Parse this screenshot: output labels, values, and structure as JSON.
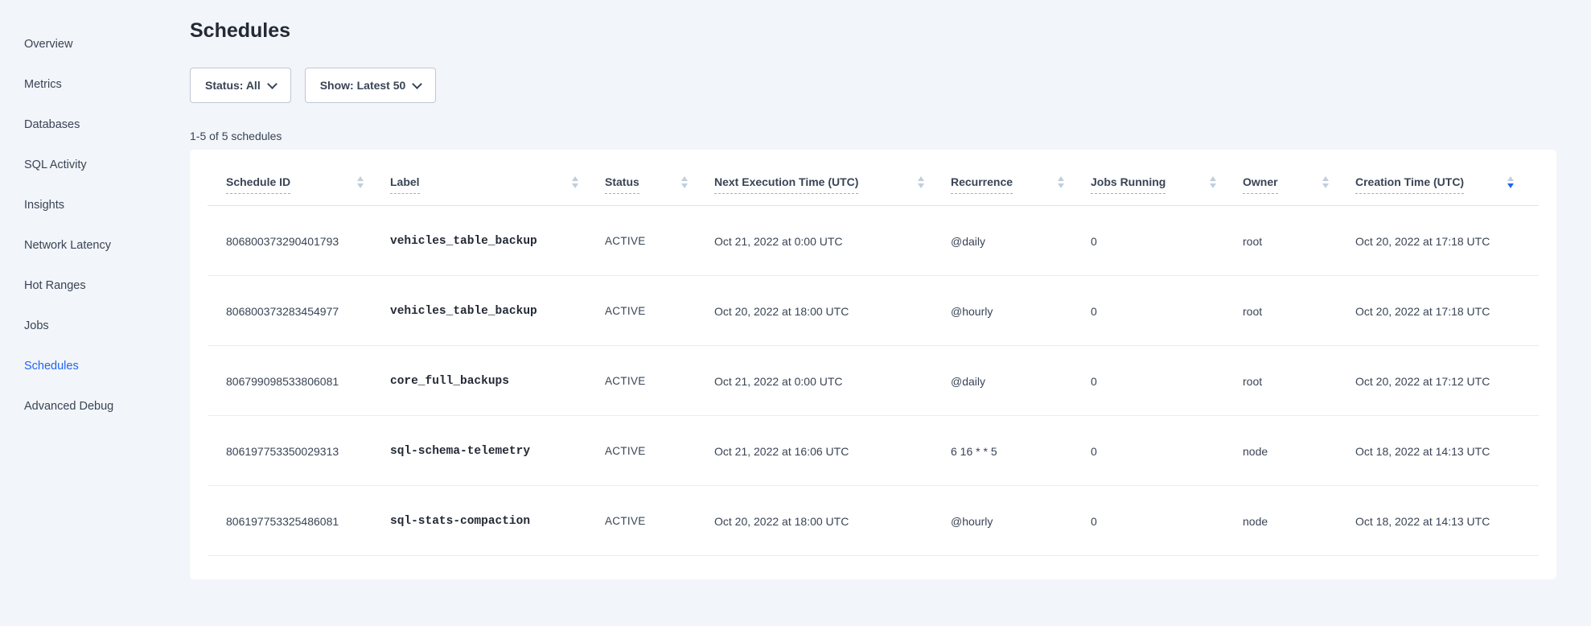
{
  "colors": {
    "page_bg": "#F2F5F9",
    "card_bg": "#FFFFFF",
    "text_primary": "#394455",
    "text_dark": "#242A35",
    "accent_blue": "#2065F0",
    "sort_inactive": "#C2CEDC",
    "sort_active": "#2065F0",
    "button_border": "#C0C7D6"
  },
  "sidebar": {
    "items": [
      {
        "label": "Overview",
        "active": false
      },
      {
        "label": "Metrics",
        "active": false
      },
      {
        "label": "Databases",
        "active": false
      },
      {
        "label": "SQL Activity",
        "active": false
      },
      {
        "label": "Insights",
        "active": false
      },
      {
        "label": "Network Latency",
        "active": false
      },
      {
        "label": "Hot Ranges",
        "active": false
      },
      {
        "label": "Jobs",
        "active": false
      },
      {
        "label": "Schedules",
        "active": true
      },
      {
        "label": "Advanced Debug",
        "active": false
      }
    ]
  },
  "page": {
    "title": "Schedules"
  },
  "filters": {
    "status": {
      "label": "Status: All"
    },
    "show": {
      "label": "Show: Latest 50"
    }
  },
  "results_summary": "1-5 of 5 schedules",
  "table": {
    "columns": [
      {
        "label": "Schedule ID",
        "sort": "none"
      },
      {
        "label": "Label",
        "sort": "none"
      },
      {
        "label": "Status",
        "sort": "none"
      },
      {
        "label": "Next Execution Time (UTC)",
        "sort": "none"
      },
      {
        "label": "Recurrence",
        "sort": "none"
      },
      {
        "label": "Jobs Running",
        "sort": "none"
      },
      {
        "label": "Owner",
        "sort": "none"
      },
      {
        "label": "Creation Time (UTC)",
        "sort": "desc"
      }
    ],
    "rows": [
      {
        "schedule_id": "806800373290401793",
        "label": "vehicles_table_backup",
        "status": "ACTIVE",
        "next_execution": "Oct 21, 2022 at 0:00 UTC",
        "recurrence": "@daily",
        "jobs_running": "0",
        "owner": "root",
        "creation_time": "Oct 20, 2022 at 17:18 UTC"
      },
      {
        "schedule_id": "806800373283454977",
        "label": "vehicles_table_backup",
        "status": "ACTIVE",
        "next_execution": "Oct 20, 2022 at 18:00 UTC",
        "recurrence": "@hourly",
        "jobs_running": "0",
        "owner": "root",
        "creation_time": "Oct 20, 2022 at 17:18 UTC"
      },
      {
        "schedule_id": "806799098533806081",
        "label": "core_full_backups",
        "status": "ACTIVE",
        "next_execution": "Oct 21, 2022 at 0:00 UTC",
        "recurrence": "@daily",
        "jobs_running": "0",
        "owner": "root",
        "creation_time": "Oct 20, 2022 at 17:12 UTC"
      },
      {
        "schedule_id": "806197753350029313",
        "label": "sql-schema-telemetry",
        "status": "ACTIVE",
        "next_execution": "Oct 21, 2022 at 16:06 UTC",
        "recurrence": "6 16 * * 5",
        "jobs_running": "0",
        "owner": "node",
        "creation_time": "Oct 18, 2022 at 14:13 UTC"
      },
      {
        "schedule_id": "806197753325486081",
        "label": "sql-stats-compaction",
        "status": "ACTIVE",
        "next_execution": "Oct 20, 2022 at 18:00 UTC",
        "recurrence": "@hourly",
        "jobs_running": "0",
        "owner": "node",
        "creation_time": "Oct 18, 2022 at 14:13 UTC"
      }
    ]
  }
}
